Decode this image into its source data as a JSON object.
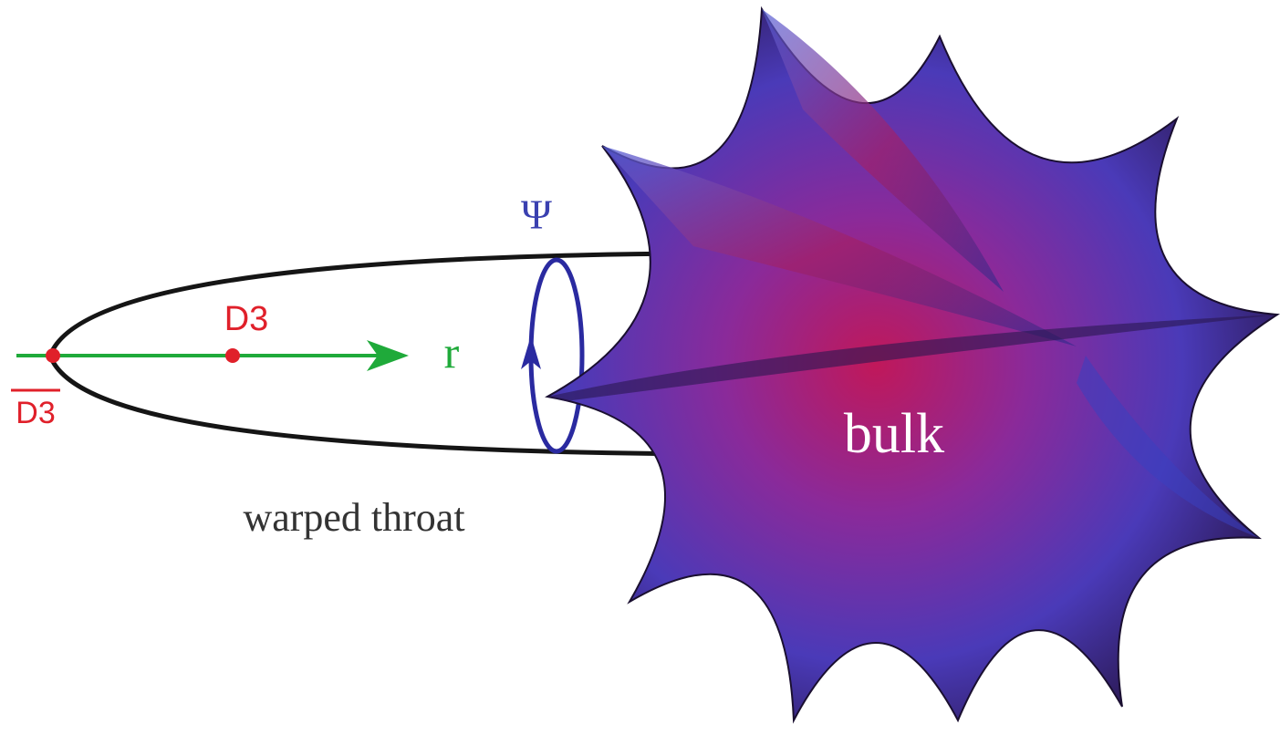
{
  "labels": {
    "psi": "Ψ",
    "d3": "D3",
    "r": "r",
    "anti_d3": "D3",
    "throat": "warped throat",
    "bulk": "bulk"
  }
}
